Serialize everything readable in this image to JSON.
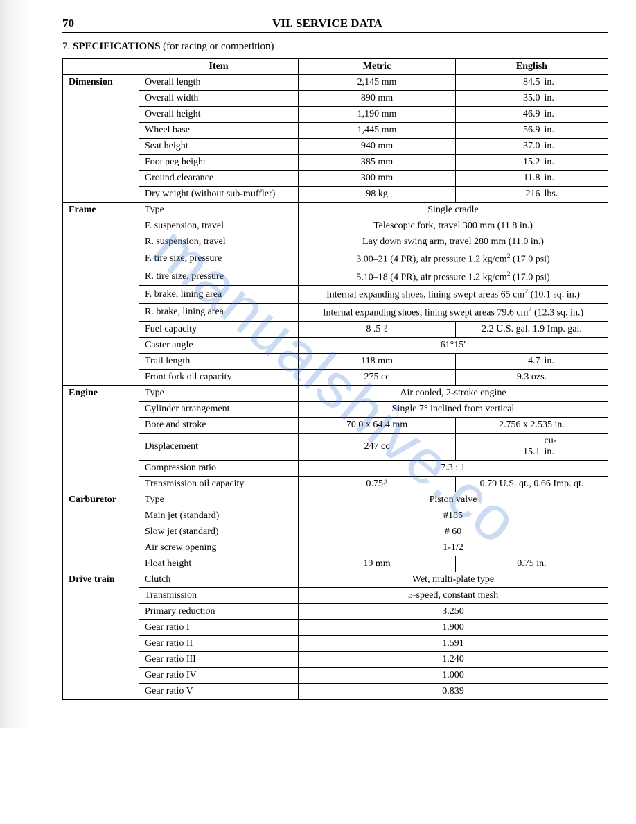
{
  "page": {
    "number": "70",
    "header": "VII. SERVICE DATA",
    "section_number": "7.",
    "section_title_bold": "SPECIFICATIONS",
    "section_title_rest": " (for racing or competition)"
  },
  "watermark": "manualshive.co",
  "table": {
    "headers": {
      "item": "Item",
      "metric": "Metric",
      "english": "English"
    },
    "groups": [
      {
        "category": "Dimension",
        "rows": [
          {
            "item": "Overall length",
            "metric": "2,145 mm",
            "english_val": "84.5",
            "english_unit": "in."
          },
          {
            "item": "Overall width",
            "metric": "890 mm",
            "english_val": "35.0",
            "english_unit": "in."
          },
          {
            "item": "Overall height",
            "metric": "1,190 mm",
            "english_val": "46.9",
            "english_unit": "in."
          },
          {
            "item": "Wheel base",
            "metric": "1,445 mm",
            "english_val": "56.9",
            "english_unit": "in."
          },
          {
            "item": "Seat height",
            "metric": "940 mm",
            "english_val": "37.0",
            "english_unit": "in."
          },
          {
            "item": "Foot peg height",
            "metric": "385 mm",
            "english_val": "15.2",
            "english_unit": "in."
          },
          {
            "item": "Ground clearance",
            "metric": "300 mm",
            "english_val": "11.8",
            "english_unit": "in."
          },
          {
            "item": "Dry weight (without sub-muffler)",
            "metric": "98 kg",
            "english_val": "216",
            "english_unit": "lbs."
          }
        ]
      },
      {
        "category": "Frame",
        "rows": [
          {
            "item": "Type",
            "merged": "Single cradle"
          },
          {
            "item": "F. suspension, travel",
            "merged": "Telescopic fork, travel 300 mm (11.8 in.)"
          },
          {
            "item": "R. suspension, travel",
            "merged": "Lay down   swing arm, travel 280 mm (11.0 in.)"
          },
          {
            "item": "F. tire size, pressure",
            "merged_html": "3.00–21 (4 PR), air pressure 1.2 kg/cm<sup>2</sup> (17.0 psi)"
          },
          {
            "item": "R. tire size, pressure",
            "merged_html": "5.10–18 (4 PR), air pressure 1.2 kg/cm<sup>2</sup> (17.0 psi)"
          },
          {
            "item": "F. brake, lining area",
            "merged_html": "Internal expanding shoes, lining swept areas 65 cm<sup>2</sup> (10.1 sq. in.)"
          },
          {
            "item": "R. brake, lining area",
            "merged_html": "Internal expanding shoes, lining swept areas 79.6 cm<sup>2</sup> (12.3 sq. in.)"
          },
          {
            "item": "Fuel capacity",
            "metric": "8 .5 ℓ",
            "english": "2.2 U.S. gal. 1.9 Imp. gal."
          },
          {
            "item": "Caster angle",
            "merged": "61°15′"
          },
          {
            "item": "Trail length",
            "metric": "118 mm",
            "english_val": "4.7",
            "english_unit": "in."
          },
          {
            "item": "Front fork oil capacity",
            "metric": "275 cc",
            "english": "9.3 ozs."
          }
        ]
      },
      {
        "category": "Engine",
        "rows": [
          {
            "item": "Type",
            "merged": "Air cooled, 2-stroke engine"
          },
          {
            "item": "Cylinder arrangement",
            "merged": "Single 7° inclined from vertical"
          },
          {
            "item": "Bore and stroke",
            "metric": "70.0 x 64.4 mm",
            "english": "2.756 x 2.535 in."
          },
          {
            "item": "Displacement",
            "metric": "247 cc",
            "english_val": "15.1",
            "english_unit": "cu-in."
          },
          {
            "item": "Compression ratio",
            "merged": "7.3 : 1"
          },
          {
            "item": "Transmission oil capacity",
            "metric": "0.75ℓ",
            "english": "0.79 U.S. qt., 0.66 Imp. qt."
          }
        ]
      },
      {
        "category": "Carburetor",
        "rows": [
          {
            "item": "Type",
            "merged": "Piston valve"
          },
          {
            "item": "Main jet (standard)",
            "merged": "#185"
          },
          {
            "item": "Slow jet (standard)",
            "merged": "#  60"
          },
          {
            "item": "Air screw opening",
            "merged": "1-1/2"
          },
          {
            "item": "Float height",
            "metric": "19 mm",
            "english": "0.75 in."
          }
        ]
      },
      {
        "category": "Drive train",
        "rows": [
          {
            "item": "Clutch",
            "merged": "Wet, multi-plate type"
          },
          {
            "item": "Transmission",
            "merged": "5-speed, constant mesh"
          },
          {
            "item": "Primary reduction",
            "merged": "3.250"
          },
          {
            "item": "Gear ratio I",
            "merged": "1.900"
          },
          {
            "item": "Gear ratio II",
            "merged": "1.591"
          },
          {
            "item": "Gear ratio III",
            "merged": "1.240"
          },
          {
            "item": "Gear ratio IV",
            "merged": "1.000"
          },
          {
            "item": "Gear ratio V",
            "merged": "0.839"
          }
        ]
      }
    ]
  }
}
